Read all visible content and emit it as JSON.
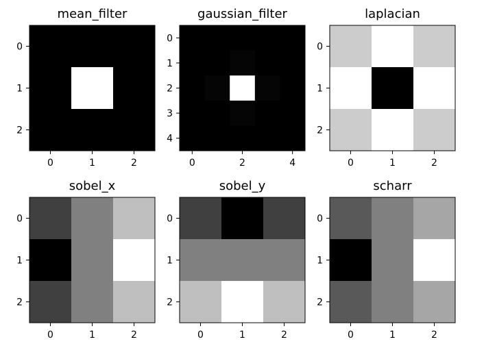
{
  "chart_data": [
    {
      "type": "heatmap",
      "title": "mean_filter",
      "x_ticks": [
        "0",
        "1",
        "2"
      ],
      "y_ticks": [
        "0",
        "1",
        "2"
      ],
      "colormap": "gray",
      "grid": false,
      "values": [
        [
          0,
          0,
          0
        ],
        [
          0,
          1,
          0
        ],
        [
          0,
          0,
          0
        ]
      ]
    },
    {
      "type": "heatmap",
      "title": "gaussian_filter",
      "x_ticks": [
        "0",
        "2",
        "4"
      ],
      "y_ticks": [
        "0",
        "1",
        "2",
        "3",
        "4"
      ],
      "colormap": "gray",
      "grid": false,
      "values": [
        [
          0,
          0,
          0,
          0,
          0
        ],
        [
          0,
          0,
          0.02,
          0,
          0
        ],
        [
          0,
          0.02,
          1,
          0.02,
          0
        ],
        [
          0,
          0,
          0.02,
          0,
          0
        ],
        [
          0,
          0,
          0,
          0,
          0
        ]
      ]
    },
    {
      "type": "heatmap",
      "title": "laplacian",
      "x_ticks": [
        "0",
        "1",
        "2"
      ],
      "y_ticks": [
        "0",
        "1",
        "2"
      ],
      "colormap": "gray",
      "grid": false,
      "values": [
        [
          0,
          1,
          0
        ],
        [
          1,
          -4,
          1
        ],
        [
          0,
          1,
          0
        ]
      ]
    },
    {
      "type": "heatmap",
      "title": "sobel_x",
      "x_ticks": [
        "0",
        "1",
        "2"
      ],
      "y_ticks": [
        "0",
        "1",
        "2"
      ],
      "colormap": "gray",
      "grid": false,
      "values": [
        [
          -1,
          0,
          1
        ],
        [
          -2,
          0,
          2
        ],
        [
          -1,
          0,
          1
        ]
      ]
    },
    {
      "type": "heatmap",
      "title": "sobel_y",
      "x_ticks": [
        "0",
        "1",
        "2"
      ],
      "y_ticks": [
        "0",
        "1",
        "2"
      ],
      "colormap": "gray",
      "grid": false,
      "values": [
        [
          -1,
          -2,
          -1
        ],
        [
          0,
          0,
          0
        ],
        [
          1,
          2,
          1
        ]
      ]
    },
    {
      "type": "heatmap",
      "title": "scharr",
      "x_ticks": [
        "0",
        "1",
        "2"
      ],
      "y_ticks": [
        "0",
        "1",
        "2"
      ],
      "colormap": "gray",
      "grid": false,
      "values": [
        [
          -3,
          0,
          3
        ],
        [
          -10,
          0,
          10
        ],
        [
          -3,
          0,
          3
        ]
      ]
    }
  ]
}
